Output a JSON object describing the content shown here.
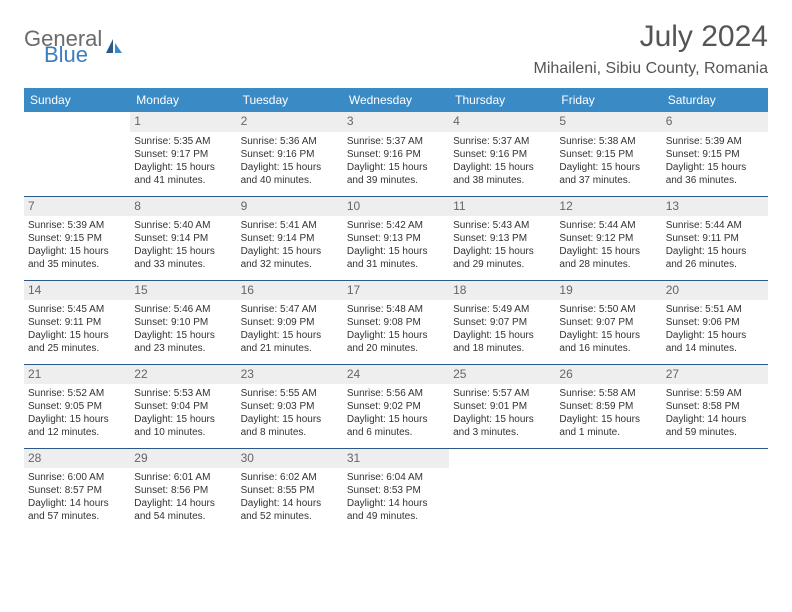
{
  "logo": {
    "general": "General",
    "blue": "Blue"
  },
  "title": "July 2024",
  "location": "Mihaileni, Sibiu County, Romania",
  "header_bg": "#3a8ac6",
  "day_headers": [
    "Sunday",
    "Monday",
    "Tuesday",
    "Wednesday",
    "Thursday",
    "Friday",
    "Saturday"
  ],
  "weeks": [
    [
      null,
      {
        "n": "1",
        "a": "Sunrise: 5:35 AM",
        "b": "Sunset: 9:17 PM",
        "c": "Daylight: 15 hours",
        "d": "and 41 minutes."
      },
      {
        "n": "2",
        "a": "Sunrise: 5:36 AM",
        "b": "Sunset: 9:16 PM",
        "c": "Daylight: 15 hours",
        "d": "and 40 minutes."
      },
      {
        "n": "3",
        "a": "Sunrise: 5:37 AM",
        "b": "Sunset: 9:16 PM",
        "c": "Daylight: 15 hours",
        "d": "and 39 minutes."
      },
      {
        "n": "4",
        "a": "Sunrise: 5:37 AM",
        "b": "Sunset: 9:16 PM",
        "c": "Daylight: 15 hours",
        "d": "and 38 minutes."
      },
      {
        "n": "5",
        "a": "Sunrise: 5:38 AM",
        "b": "Sunset: 9:15 PM",
        "c": "Daylight: 15 hours",
        "d": "and 37 minutes."
      },
      {
        "n": "6",
        "a": "Sunrise: 5:39 AM",
        "b": "Sunset: 9:15 PM",
        "c": "Daylight: 15 hours",
        "d": "and 36 minutes."
      }
    ],
    [
      {
        "n": "7",
        "a": "Sunrise: 5:39 AM",
        "b": "Sunset: 9:15 PM",
        "c": "Daylight: 15 hours",
        "d": "and 35 minutes."
      },
      {
        "n": "8",
        "a": "Sunrise: 5:40 AM",
        "b": "Sunset: 9:14 PM",
        "c": "Daylight: 15 hours",
        "d": "and 33 minutes."
      },
      {
        "n": "9",
        "a": "Sunrise: 5:41 AM",
        "b": "Sunset: 9:14 PM",
        "c": "Daylight: 15 hours",
        "d": "and 32 minutes."
      },
      {
        "n": "10",
        "a": "Sunrise: 5:42 AM",
        "b": "Sunset: 9:13 PM",
        "c": "Daylight: 15 hours",
        "d": "and 31 minutes."
      },
      {
        "n": "11",
        "a": "Sunrise: 5:43 AM",
        "b": "Sunset: 9:13 PM",
        "c": "Daylight: 15 hours",
        "d": "and 29 minutes."
      },
      {
        "n": "12",
        "a": "Sunrise: 5:44 AM",
        "b": "Sunset: 9:12 PM",
        "c": "Daylight: 15 hours",
        "d": "and 28 minutes."
      },
      {
        "n": "13",
        "a": "Sunrise: 5:44 AM",
        "b": "Sunset: 9:11 PM",
        "c": "Daylight: 15 hours",
        "d": "and 26 minutes."
      }
    ],
    [
      {
        "n": "14",
        "a": "Sunrise: 5:45 AM",
        "b": "Sunset: 9:11 PM",
        "c": "Daylight: 15 hours",
        "d": "and 25 minutes."
      },
      {
        "n": "15",
        "a": "Sunrise: 5:46 AM",
        "b": "Sunset: 9:10 PM",
        "c": "Daylight: 15 hours",
        "d": "and 23 minutes."
      },
      {
        "n": "16",
        "a": "Sunrise: 5:47 AM",
        "b": "Sunset: 9:09 PM",
        "c": "Daylight: 15 hours",
        "d": "and 21 minutes."
      },
      {
        "n": "17",
        "a": "Sunrise: 5:48 AM",
        "b": "Sunset: 9:08 PM",
        "c": "Daylight: 15 hours",
        "d": "and 20 minutes."
      },
      {
        "n": "18",
        "a": "Sunrise: 5:49 AM",
        "b": "Sunset: 9:07 PM",
        "c": "Daylight: 15 hours",
        "d": "and 18 minutes."
      },
      {
        "n": "19",
        "a": "Sunrise: 5:50 AM",
        "b": "Sunset: 9:07 PM",
        "c": "Daylight: 15 hours",
        "d": "and 16 minutes."
      },
      {
        "n": "20",
        "a": "Sunrise: 5:51 AM",
        "b": "Sunset: 9:06 PM",
        "c": "Daylight: 15 hours",
        "d": "and 14 minutes."
      }
    ],
    [
      {
        "n": "21",
        "a": "Sunrise: 5:52 AM",
        "b": "Sunset: 9:05 PM",
        "c": "Daylight: 15 hours",
        "d": "and 12 minutes."
      },
      {
        "n": "22",
        "a": "Sunrise: 5:53 AM",
        "b": "Sunset: 9:04 PM",
        "c": "Daylight: 15 hours",
        "d": "and 10 minutes."
      },
      {
        "n": "23",
        "a": "Sunrise: 5:55 AM",
        "b": "Sunset: 9:03 PM",
        "c": "Daylight: 15 hours",
        "d": "and 8 minutes."
      },
      {
        "n": "24",
        "a": "Sunrise: 5:56 AM",
        "b": "Sunset: 9:02 PM",
        "c": "Daylight: 15 hours",
        "d": "and 6 minutes."
      },
      {
        "n": "25",
        "a": "Sunrise: 5:57 AM",
        "b": "Sunset: 9:01 PM",
        "c": "Daylight: 15 hours",
        "d": "and 3 minutes."
      },
      {
        "n": "26",
        "a": "Sunrise: 5:58 AM",
        "b": "Sunset: 8:59 PM",
        "c": "Daylight: 15 hours",
        "d": "and 1 minute."
      },
      {
        "n": "27",
        "a": "Sunrise: 5:59 AM",
        "b": "Sunset: 8:58 PM",
        "c": "Daylight: 14 hours",
        "d": "and 59 minutes."
      }
    ],
    [
      {
        "n": "28",
        "a": "Sunrise: 6:00 AM",
        "b": "Sunset: 8:57 PM",
        "c": "Daylight: 14 hours",
        "d": "and 57 minutes."
      },
      {
        "n": "29",
        "a": "Sunrise: 6:01 AM",
        "b": "Sunset: 8:56 PM",
        "c": "Daylight: 14 hours",
        "d": "and 54 minutes."
      },
      {
        "n": "30",
        "a": "Sunrise: 6:02 AM",
        "b": "Sunset: 8:55 PM",
        "c": "Daylight: 14 hours",
        "d": "and 52 minutes."
      },
      {
        "n": "31",
        "a": "Sunrise: 6:04 AM",
        "b": "Sunset: 8:53 PM",
        "c": "Daylight: 14 hours",
        "d": "and 49 minutes."
      },
      null,
      null,
      null
    ]
  ]
}
